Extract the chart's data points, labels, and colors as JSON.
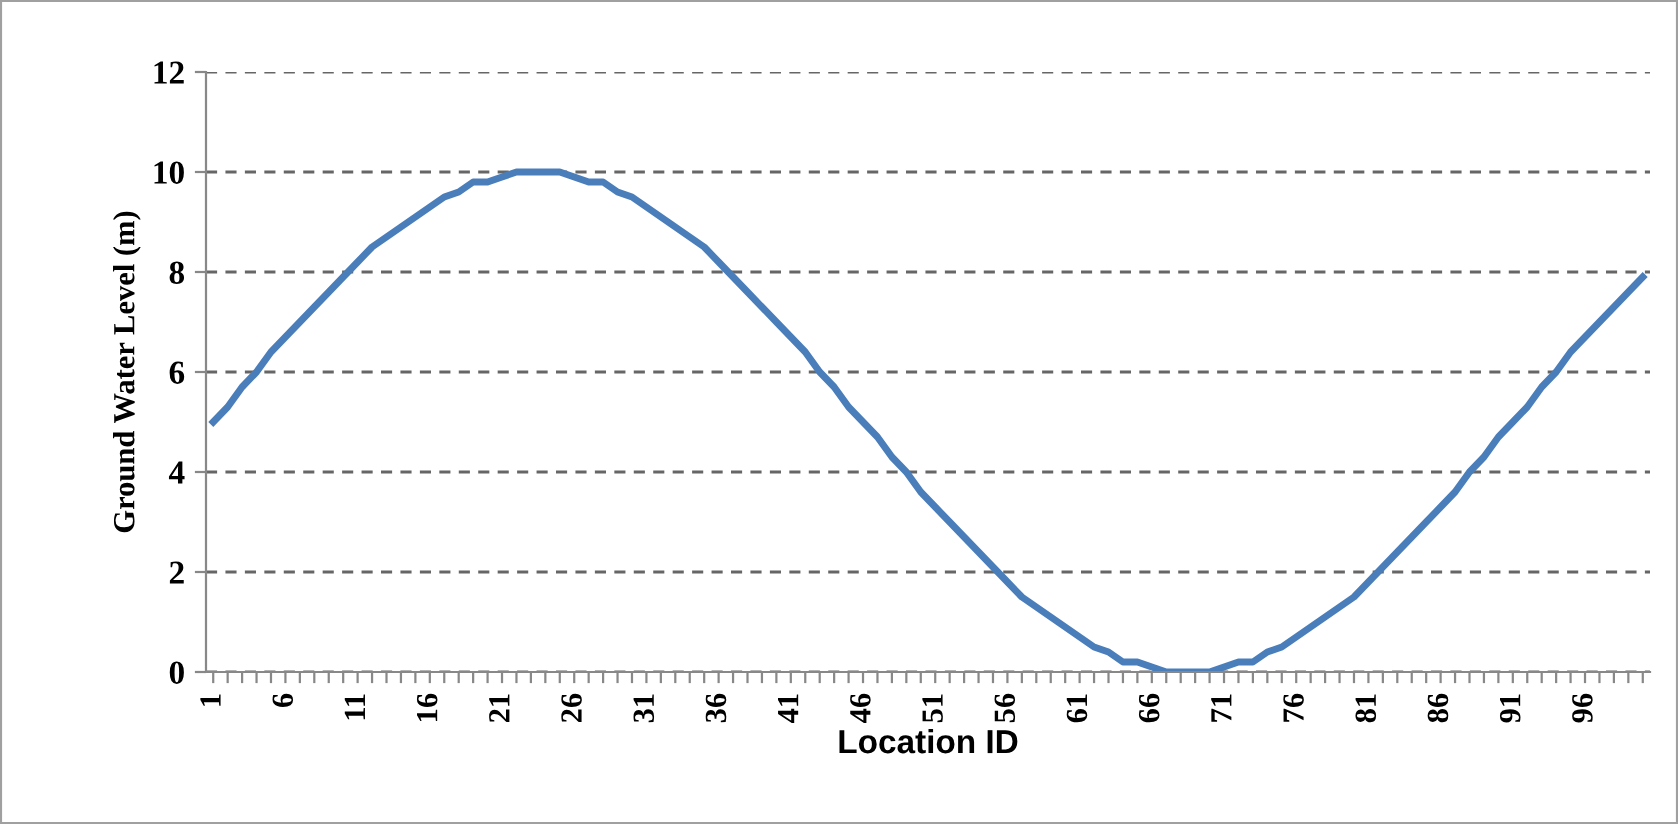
{
  "chart_data": {
    "type": "line",
    "xlabel": "Location ID",
    "ylabel": "Ground Water Level (m)",
    "categories": [
      "1",
      null,
      null,
      null,
      null,
      "6",
      null,
      null,
      null,
      null,
      "11",
      null,
      null,
      null,
      null,
      "16",
      null,
      null,
      null,
      null,
      "21",
      null,
      null,
      null,
      null,
      "26",
      null,
      null,
      null,
      null,
      "31",
      null,
      null,
      null,
      null,
      "36",
      null,
      null,
      null,
      null,
      "41",
      null,
      null,
      null,
      null,
      "46",
      null,
      null,
      null,
      null,
      "51",
      null,
      null,
      null,
      null,
      "56",
      null,
      null,
      null,
      null,
      "61",
      null,
      null,
      null,
      null,
      "66",
      null,
      null,
      null,
      null,
      "71",
      null,
      null,
      null,
      null,
      "76",
      null,
      null,
      null,
      null,
      "81",
      null,
      null,
      null,
      null,
      "86",
      null,
      null,
      null,
      null,
      "91",
      null,
      null,
      null,
      null,
      "96",
      null,
      null,
      null,
      null
    ],
    "series": [
      {
        "color": "#4a7ebb",
        "values": [
          5.0,
          5.3,
          5.7,
          6.0,
          6.4,
          6.7,
          7.0,
          7.3,
          7.6,
          7.9,
          8.2,
          8.5,
          8.7,
          8.9,
          9.1,
          9.3,
          9.5,
          9.6,
          9.8,
          9.8,
          9.9,
          10.0,
          10.0,
          10.0,
          10.0,
          9.9,
          9.8,
          9.8,
          9.6,
          9.5,
          9.3,
          9.1,
          8.9,
          8.7,
          8.5,
          8.2,
          7.9,
          7.6,
          7.3,
          7.0,
          6.7,
          6.4,
          6.0,
          5.7,
          5.3,
          5.0,
          4.7,
          4.3,
          4.0,
          3.6,
          3.3,
          3.0,
          2.7,
          2.4,
          2.1,
          1.8,
          1.5,
          1.3,
          1.1,
          0.9,
          0.7,
          0.5,
          0.4,
          0.2,
          0.2,
          0.1,
          0.0,
          0.0,
          0.0,
          0.0,
          0.1,
          0.2,
          0.2,
          0.4,
          0.5,
          0.7,
          0.9,
          1.1,
          1.3,
          1.5,
          1.8,
          2.1,
          2.4,
          2.7,
          3.0,
          3.3,
          3.6,
          4.0,
          4.3,
          4.7,
          5.0,
          5.3,
          5.7,
          6.0,
          6.4,
          6.7,
          7.0,
          7.3,
          7.6,
          7.9
        ]
      }
    ],
    "ylim": [
      0,
      12
    ],
    "yticks": [
      0,
      2,
      4,
      6,
      8,
      10,
      12
    ],
    "grid": "y",
    "marker": "none",
    "line_style": "solid",
    "legend": false
  }
}
